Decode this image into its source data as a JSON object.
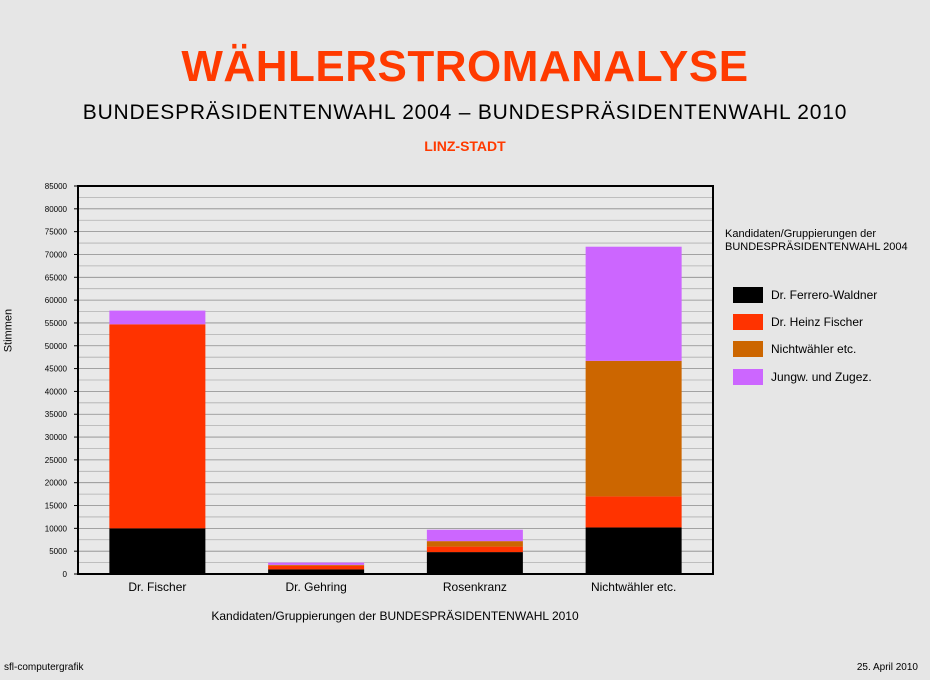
{
  "header": {
    "title": "WÄHLERSTROMANALYSE",
    "subtitle": "BUNDESPRÄSIDENTENWAHL 2004 – BUNDESPRÄSIDENTENWAHL 2010",
    "region": "LINZ-STADT"
  },
  "footer": {
    "left": "sfl-computergrafik",
    "right": "25. April 2010"
  },
  "chart_data": {
    "type": "bar",
    "stacked": true,
    "categories": [
      "Dr. Fischer",
      "Dr. Gehring",
      "Rosenkranz",
      "Nichtwähler etc."
    ],
    "series": [
      {
        "name": "Dr. Ferrero-Waldner",
        "color": "#000000",
        "values": [
          10000,
          1000,
          4800,
          10200
        ]
      },
      {
        "name": "Dr. Heinz Fischer",
        "color": "#ff3300",
        "values": [
          44700,
          800,
          1200,
          6800
        ]
      },
      {
        "name": "Nichtwähler etc.",
        "color": "#cc6600",
        "values": [
          0,
          200,
          1200,
          29700
        ]
      },
      {
        "name": "Jungw. und Zugez.",
        "color": "#cc66ff",
        "values": [
          3000,
          500,
          2500,
          25000
        ]
      }
    ],
    "xlabel": "Kandidaten/Gruppierungen der BUNDESPRÄSIDENTENWAHL 2010",
    "ylabel": "Stimmen",
    "ylim": [
      0,
      85000
    ],
    "yticks": [
      0,
      5000,
      10000,
      15000,
      20000,
      25000,
      30000,
      35000,
      40000,
      45000,
      50000,
      55000,
      60000,
      65000,
      70000,
      75000,
      80000,
      85000
    ],
    "grid": true,
    "legend_title": "Kandidaten/Gruppierungen der BUNDESPRÄSIDENTENWAHL  2004",
    "legend_position": "right"
  }
}
